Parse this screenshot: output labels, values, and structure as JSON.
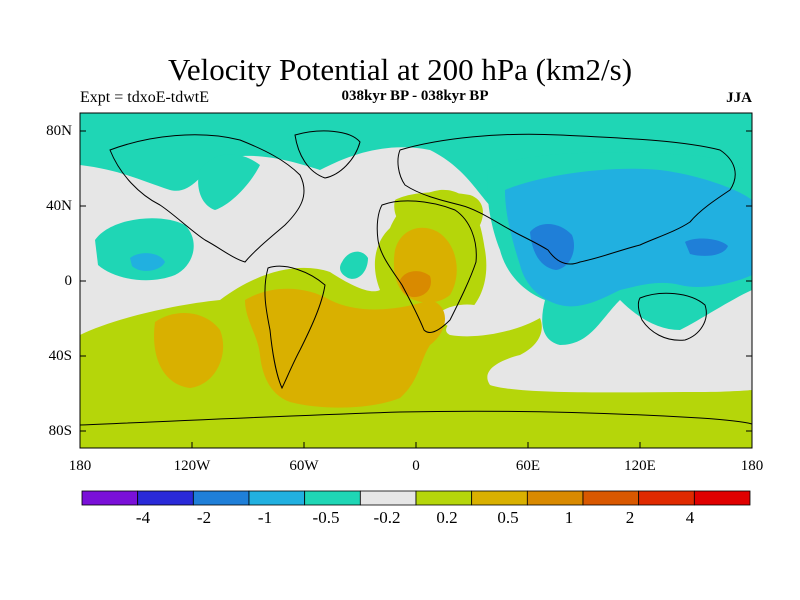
{
  "title": "Velocity Potential at 200 hPa (km2/s)",
  "subtitle_left": "Expt = tdxoE-tdwtE",
  "subtitle_center": "038kyr BP - 038kyr BP",
  "subtitle_right": "JJA",
  "y_ticks": [
    "80N",
    "40N",
    "0",
    "40S",
    "80S"
  ],
  "x_ticks": [
    "180",
    "120W",
    "60W",
    "0",
    "60E",
    "120E",
    "180"
  ],
  "colorbar": {
    "labels": [
      "-4",
      "-2",
      "-1",
      "-0.5",
      "-0.2",
      "0.2",
      "0.5",
      "1",
      "2",
      "4"
    ],
    "colors": [
      "#7a10d8",
      "#2a2ad8",
      "#1f7fd8",
      "#21b0e0",
      "#1fd6b5",
      "#e6e6e6",
      "#b5d60a",
      "#d9b000",
      "#d98a00",
      "#d95800",
      "#e02a00",
      "#e00000"
    ]
  },
  "palette": {
    "neutral": "#e6e6e6",
    "teal": "#1fd6b5",
    "lightblue": "#21b0e0",
    "blue": "#1f7fd8",
    "green": "#b5d60a",
    "orange": "#d9b000",
    "darkorange": "#d98a00"
  }
}
